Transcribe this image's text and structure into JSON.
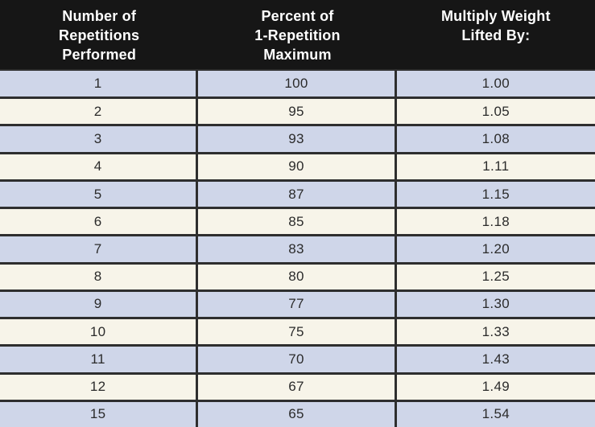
{
  "colors": {
    "header_bg": "#161616",
    "header_text": "#ffffff",
    "row_blue": "#cfd6e9",
    "row_cream": "#f7f4e9",
    "border": "#2e2e2e",
    "cell_text": "#2b2b2b"
  },
  "table": {
    "columns": [
      "Number of\nRepetitions\nPerformed",
      "Percent of\n1-Repetition\nMaximum",
      "Multiply Weight\nLifted By:"
    ],
    "rows": [
      [
        "1",
        "100",
        "1.00"
      ],
      [
        "2",
        "95",
        "1.05"
      ],
      [
        "3",
        "93",
        "1.08"
      ],
      [
        "4",
        "90",
        "1.11"
      ],
      [
        "5",
        "87",
        "1.15"
      ],
      [
        "6",
        "85",
        "1.18"
      ],
      [
        "7",
        "83",
        "1.20"
      ],
      [
        "8",
        "80",
        "1.25"
      ],
      [
        "9",
        "77",
        "1.30"
      ],
      [
        "10",
        "75",
        "1.33"
      ],
      [
        "11",
        "70",
        "1.43"
      ],
      [
        "12",
        "67",
        "1.49"
      ],
      [
        "15",
        "65",
        "1.54"
      ]
    ]
  }
}
